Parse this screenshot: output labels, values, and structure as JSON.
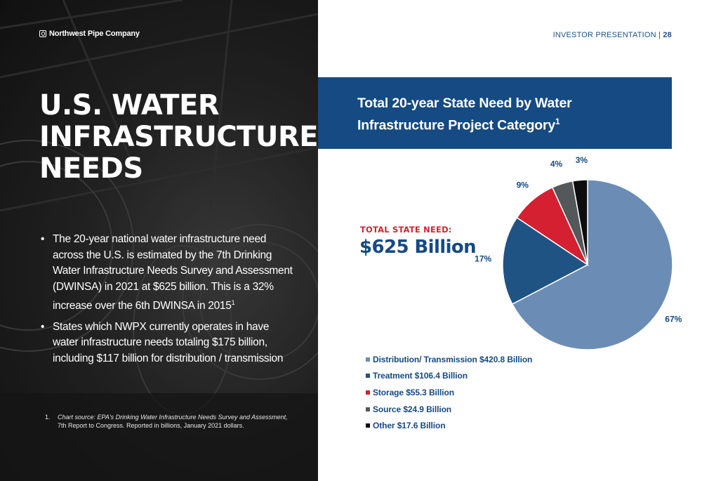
{
  "company": {
    "name": "Northwest Pipe Company"
  },
  "header": {
    "section": "INVESTOR PRESENTATION | ",
    "page": "28"
  },
  "headline": {
    "line1": "U.S. WATER",
    "line2": "INFRASTRUCTURE",
    "line3": "NEEDS"
  },
  "bullets": [
    {
      "text": "The 20-year national water infrastructure need across the U.S. is estimated by the 7th Drinking Water Infrastructure Needs Survey and Assessment (DWINSA) in 2021 at $625 billion. This is a 32% increase over the 6th DWINSA in 2015",
      "sup": "1"
    },
    {
      "text": "States which NWPX currently operates in have water infrastructure needs totaling $175 billion, including $117 billion for distribution / transmission",
      "sup": ""
    }
  ],
  "footnote": {
    "number": "1.",
    "source": "Chart source: EPA's Drinking Water Infrastructure Needs Survey and Assessment,",
    "detail": "7th Report to Congress. Reported in billions, January 2021 dollars."
  },
  "total": {
    "label": "TOTAL STATE NEED:",
    "value": "$625 Billion"
  },
  "colors": {
    "brand_blue": "#154a82",
    "accent_red": "#d42030"
  },
  "chart_data": {
    "type": "pie",
    "title": "Total 20-year State Need by Water Infrastructure Project Category",
    "title_sup": "1",
    "unit": "Billion USD",
    "slices": [
      {
        "label": "Distribution/ Transmission $420.8 Billion",
        "value": 420.8,
        "percent_label": "67%",
        "color": "#6b8db5"
      },
      {
        "label": "Treatment $106.4 Billion",
        "value": 106.4,
        "percent_label": "17%",
        "color": "#1f5384"
      },
      {
        "label": "Storage $55.3 Billion",
        "value": 55.3,
        "percent_label": "9%",
        "color": "#d42030"
      },
      {
        "label": "Source $24.9 Billion",
        "value": 24.9,
        "percent_label": "4%",
        "color": "#55585b"
      },
      {
        "label": "Other $17.6 Billion",
        "value": 17.6,
        "percent_label": "3%",
        "color": "#0d0d0d"
      }
    ],
    "legend_position": "bottom-left"
  }
}
